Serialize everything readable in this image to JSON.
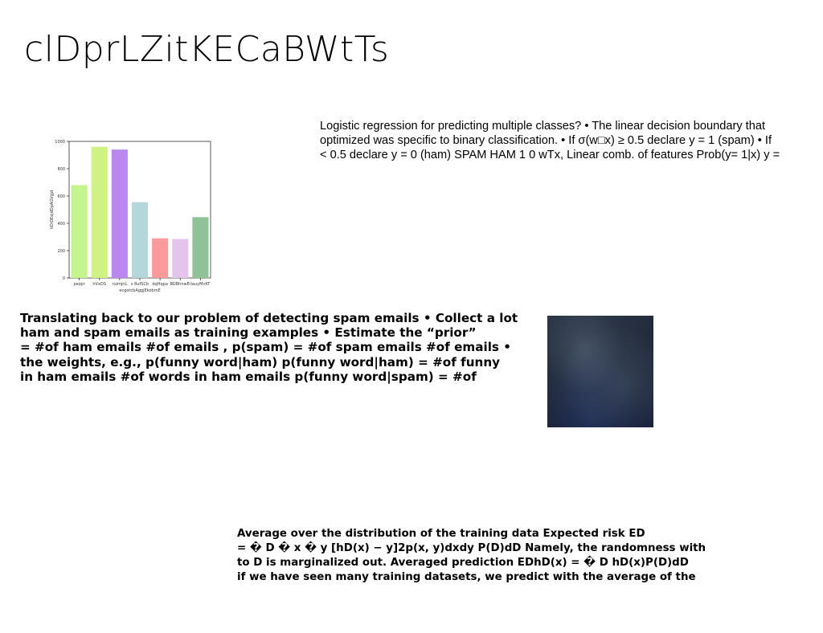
{
  "slide": {
    "title": "clDprLZitKECaBWtTs",
    "text_block_1": [
      "Logistic regression for predicting multiple classes? • The linear decision boundary that",
      "optimized was specific to binary classification. • If σ(w□x) ≥ 0.5 declare y = 1 (spam) • If",
      "< 0.5 declare y = 0 (ham) SPAM HAM 1 0 wTx, Linear comb. of features Prob(y= 1|x) y ="
    ],
    "text_block_2": [
      "Translating back to our problem of detecting spam emails • Collect a lot",
      "ham and spam emails as training examples • Estimate the “prior”",
      "= #of ham emails #of emails , p(spam) = #of spam emails #of emails •",
      "the weights, e.g., p(funny word|ham) p(funny word|ham) = #of funny",
      "in ham emails #of words in ham emails p(funny word|spam) = #of"
    ],
    "text_block_3": [
      "Average over the distribution of the training data Expected risk ED",
      "= � D � x � y [hD(x) − y]2p(x, y)dxdy P(D)dD Namely, the randomness with",
      "to D is marginalized out. Averaged prediction EDhD(x) = � D hD(x)P(D)dD",
      "if we have seen many training datasets, we predict with the average of the"
    ]
  },
  "chart_data": {
    "type": "bar",
    "categories": [
      "pezpr",
      "hVxOS",
      "ruimjnL",
      "s RufSCb",
      "dqHqpa",
      "BDBhnwEi",
      "lauyMvKT"
    ],
    "values": [
      680,
      960,
      940,
      555,
      290,
      285,
      445
    ],
    "colors": [
      "#c5f58e",
      "#d0f283",
      "#b987ee",
      "#b4d7dc",
      "#fb9a9a",
      "#e3c4ea",
      "#8fc294"
    ],
    "xlabel": "ecgotcbAggjEkobmE",
    "ylabel": "hDiDEejdDpAGVgjd",
    "ylim": [
      0,
      1000
    ],
    "yticks": [
      0,
      200,
      400,
      600,
      800,
      1000
    ],
    "grid": false
  }
}
